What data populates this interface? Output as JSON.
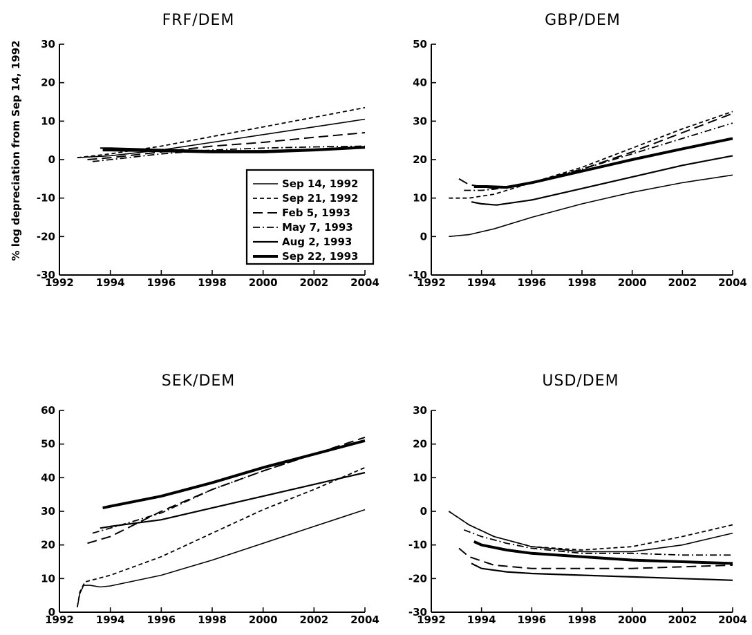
{
  "figure": {
    "ylabel": "% log depreciation from Sep 14, 1992"
  },
  "legend": {
    "entries": [
      {
        "label": "Sep 14, 1992",
        "style": "solid-thin"
      },
      {
        "label": "Sep 21, 1992",
        "style": "dashed-short"
      },
      {
        "label": "Feb  5, 1993",
        "style": "dashed-long"
      },
      {
        "label": "May  7, 1993",
        "style": "dashdot"
      },
      {
        "label": "Aug  2, 1993",
        "style": "solid-medium"
      },
      {
        "label": "Sep 22, 1993",
        "style": "solid-thick"
      }
    ]
  },
  "chart_data": [
    {
      "type": "line",
      "title": "FRF/DEM",
      "xlim": [
        1992,
        2004
      ],
      "ylim": [
        -30,
        30
      ],
      "xticks": [
        "1992",
        "1994",
        "1996",
        "1998",
        "2000",
        "2002",
        "2004"
      ],
      "yticks": [
        "-30",
        "-20",
        "-10",
        "0",
        "10",
        "20",
        "30"
      ],
      "legend_position": "lower-right",
      "series": [
        {
          "name": "Sep 14, 1992",
          "style": "solid-thin",
          "x": [
            1992.7,
            1994,
            1996,
            1998,
            2000,
            2002,
            2004
          ],
          "y": [
            0.5,
            1.0,
            2.5,
            4.5,
            6.5,
            8.5,
            10.5
          ]
        },
        {
          "name": "Sep 21, 1992",
          "style": "dashed-short",
          "x": [
            1992.7,
            1994,
            1996,
            1998,
            2000,
            2002,
            2004
          ],
          "y": [
            0.5,
            1.5,
            3.5,
            6.0,
            8.5,
            11.0,
            13.5
          ]
        },
        {
          "name": "Feb  5, 1993",
          "style": "dashed-long",
          "x": [
            1993.1,
            1994,
            1996,
            1998,
            2000,
            2002,
            2004
          ],
          "y": [
            0.0,
            0.5,
            2.0,
            3.5,
            4.5,
            5.8,
            7.0
          ]
        },
        {
          "name": "May  7, 1993",
          "style": "dashdot",
          "x": [
            1993.3,
            1994,
            1996,
            1998,
            2000,
            2002,
            2004
          ],
          "y": [
            -0.5,
            0.0,
            1.5,
            2.5,
            3.0,
            3.3,
            3.5
          ]
        },
        {
          "name": "Aug  2, 1993",
          "style": "solid-medium",
          "x": [
            1993.6,
            1994,
            1996,
            1998,
            2000,
            2002,
            2004
          ],
          "y": [
            3.0,
            3.0,
            2.6,
            2.3,
            2.3,
            2.7,
            3.3
          ]
        },
        {
          "name": "Sep 22, 1993",
          "style": "solid-thick",
          "x": [
            1993.7,
            1994,
            1996,
            1998,
            2000,
            2002,
            2004
          ],
          "y": [
            2.5,
            2.5,
            2.3,
            2.0,
            2.0,
            2.5,
            3.2
          ]
        }
      ]
    },
    {
      "type": "line",
      "title": "GBP/DEM",
      "xlim": [
        1992,
        2004
      ],
      "ylim": [
        -10,
        50
      ],
      "xticks": [
        "1992",
        "1994",
        "1996",
        "1998",
        "2000",
        "2002",
        "2004"
      ],
      "yticks": [
        "-10",
        "0",
        "10",
        "20",
        "30",
        "40",
        "50"
      ],
      "series": [
        {
          "name": "Sep 14, 1992",
          "style": "solid-thin",
          "x": [
            1992.7,
            1993.5,
            1994.5,
            1996,
            1998,
            2000,
            2002,
            2004
          ],
          "y": [
            0,
            0.5,
            2.0,
            5.0,
            8.5,
            11.5,
            14.0,
            16.0
          ]
        },
        {
          "name": "Sep 21, 1992",
          "style": "dashed-short",
          "x": [
            1992.7,
            1993.5,
            1994.5,
            1996,
            1998,
            2000,
            2002,
            2004
          ],
          "y": [
            10,
            10,
            11,
            14,
            18,
            23,
            28,
            32.5
          ]
        },
        {
          "name": "Feb  5, 1993",
          "style": "dashed-long",
          "x": [
            1993.1,
            1993.5,
            1994.5,
            1996,
            1998,
            2000,
            2002,
            2004
          ],
          "y": [
            15,
            13.5,
            12.5,
            14,
            17.5,
            22,
            27,
            32
          ]
        },
        {
          "name": "May  7, 1993",
          "style": "dashdot",
          "x": [
            1993.3,
            1994,
            1994.5,
            1996,
            1998,
            2000,
            2002,
            2004
          ],
          "y": [
            12,
            12,
            12.3,
            14,
            17.5,
            21.5,
            25.5,
            29.5
          ]
        },
        {
          "name": "Aug  2, 1993",
          "style": "solid-medium",
          "x": [
            1993.6,
            1994,
            1994.6,
            1996,
            1998,
            2000,
            2002,
            2004
          ],
          "y": [
            9,
            8.5,
            8.2,
            9.5,
            12.5,
            15.5,
            18.5,
            21
          ]
        },
        {
          "name": "Sep 22, 1993",
          "style": "solid-thick",
          "x": [
            1993.7,
            1994.2,
            1995,
            1996,
            1998,
            2000,
            2002,
            2004
          ],
          "y": [
            13,
            13,
            12.8,
            14,
            17,
            20,
            22.8,
            25.5
          ]
        }
      ]
    },
    {
      "type": "line",
      "title": "SEK/DEM",
      "xlim": [
        1992,
        2004
      ],
      "ylim": [
        0,
        60
      ],
      "xticks": [
        "1992",
        "1994",
        "1996",
        "1998",
        "2000",
        "2002",
        "2004"
      ],
      "yticks": [
        "0",
        "10",
        "20",
        "30",
        "40",
        "50",
        "60"
      ],
      "series": [
        {
          "name": "Sep 14, 1992",
          "style": "solid-thin",
          "x": [
            1992.7,
            1992.8,
            1992.95,
            1993.2,
            1993.6,
            1994,
            1996,
            1998,
            2000,
            2002,
            2004
          ],
          "y": [
            1.5,
            5.5,
            8.0,
            8.0,
            7.5,
            7.8,
            11,
            15.5,
            20.5,
            25.5,
            30.5
          ]
        },
        {
          "name": "Sep 21, 1992",
          "style": "dashed-short",
          "x": [
            1992.7,
            1992.8,
            1993.0,
            1994,
            1996,
            1998,
            2000,
            2002,
            2004
          ],
          "y": [
            1.5,
            6,
            9,
            11,
            16.5,
            23.5,
            30.5,
            36.5,
            43
          ]
        },
        {
          "name": "Feb  5, 1993",
          "style": "dashed-long",
          "x": [
            1993.1,
            1994,
            1996,
            1998,
            2000,
            2002,
            2004
          ],
          "y": [
            20.5,
            22.5,
            30,
            36.5,
            42,
            47,
            52
          ]
        },
        {
          "name": "May  7, 1993",
          "style": "dashdot",
          "x": [
            1993.3,
            1994,
            1996,
            1998,
            2000,
            2002,
            2004
          ],
          "y": [
            23.5,
            25,
            29.5,
            36.5,
            42,
            47,
            51
          ]
        },
        {
          "name": "Aug  2, 1993",
          "style": "solid-medium",
          "x": [
            1993.6,
            1994,
            1996,
            1998,
            2000,
            2002,
            2004
          ],
          "y": [
            25,
            25.5,
            27.5,
            31,
            34.5,
            38,
            41.5
          ]
        },
        {
          "name": "Sep 22, 1993",
          "style": "solid-thick",
          "x": [
            1993.7,
            1994,
            1996,
            1998,
            2000,
            2002,
            2004
          ],
          "y": [
            31,
            31.5,
            34.5,
            38.5,
            43,
            47,
            51
          ]
        }
      ]
    },
    {
      "type": "line",
      "title": "USD/DEM",
      "xlim": [
        1992,
        2004
      ],
      "ylim": [
        -30,
        30
      ],
      "xticks": [
        "1992",
        "1994",
        "1996",
        "1998",
        "2000",
        "2002",
        "2004"
      ],
      "yticks": [
        "-30",
        "-20",
        "-10",
        "0",
        "10",
        "20",
        "30"
      ],
      "series": [
        {
          "name": "Sep 14, 1992",
          "style": "solid-thin",
          "x": [
            1992.7,
            1993.5,
            1994.5,
            1996,
            1998,
            2000,
            2002,
            2004
          ],
          "y": [
            0,
            -4,
            -7.5,
            -10.5,
            -12,
            -12,
            -10,
            -6.5
          ]
        },
        {
          "name": "Sep 21, 1992",
          "style": "dashed-short",
          "x": [
            1992.7,
            1993.5,
            1994.5,
            1996,
            1998,
            2000,
            2002,
            2004
          ],
          "y": [
            0,
            -4,
            -7.5,
            -10.5,
            -11.5,
            -10.5,
            -7.5,
            -4
          ]
        },
        {
          "name": "Feb  5, 1993",
          "style": "dashed-long",
          "x": [
            1993.1,
            1993.5,
            1994.5,
            1996,
            1998,
            2000,
            2002,
            2004
          ],
          "y": [
            -11,
            -13.5,
            -16,
            -17,
            -17,
            -17,
            -16.5,
            -16
          ]
        },
        {
          "name": "May  7, 1993",
          "style": "dashdot",
          "x": [
            1993.3,
            1994,
            1995,
            1996,
            1998,
            2000,
            2002,
            2004
          ],
          "y": [
            -5.5,
            -7.5,
            -9.5,
            -11,
            -12.5,
            -12.5,
            -13,
            -13
          ]
        },
        {
          "name": "Aug  2, 1993",
          "style": "solid-medium",
          "x": [
            1993.6,
            1994,
            1995,
            1996,
            1998,
            2000,
            2002,
            2004
          ],
          "y": [
            -15.5,
            -17,
            -18,
            -18.5,
            -19,
            -19.5,
            -20,
            -20.5
          ]
        },
        {
          "name": "Sep 22, 1993",
          "style": "solid-thick",
          "x": [
            1993.7,
            1994,
            1995,
            1996,
            1998,
            2000,
            2002,
            2004
          ],
          "y": [
            -9,
            -10,
            -11.5,
            -12.5,
            -13.5,
            -14.5,
            -15,
            -15.5
          ]
        }
      ]
    }
  ]
}
